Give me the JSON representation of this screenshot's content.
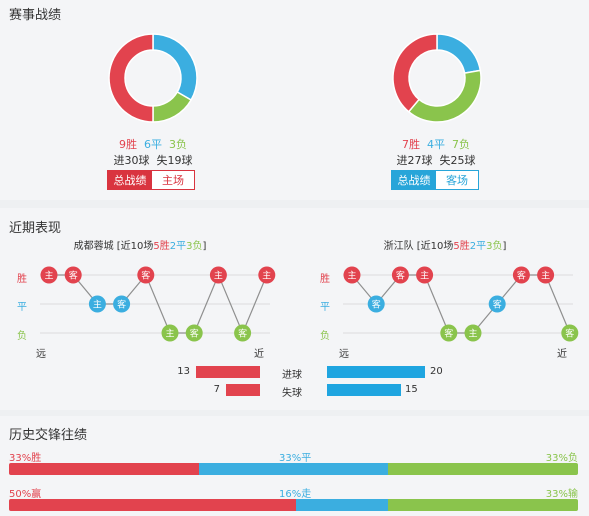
{
  "colors": {
    "win": "#e2434e",
    "draw": "#3baee0",
    "loss": "#8ac44c",
    "home_accent": "#d9343f",
    "away_accent": "#27a5d9"
  },
  "section1": {
    "title": "赛事战绩"
  },
  "left_summary": {
    "wins": 9,
    "draws": 6,
    "losses": 3,
    "win_label": "9胜",
    "draw_label": "6平",
    "loss_label": "3负",
    "goals_text": "进30球  失19球",
    "tab_all": "总战绩",
    "tab_side": "主场"
  },
  "right_summary": {
    "wins": 7,
    "draws": 4,
    "losses": 7,
    "win_label": "7胜",
    "draw_label": "4平",
    "loss_label": "7负",
    "goals_text": "进27球  失25球",
    "tab_all": "总战绩",
    "tab_side": "客场"
  },
  "section2": {
    "title": "近期表现"
  },
  "left_recent": {
    "team": "成都蓉城",
    "prefix": " [近10场",
    "w": "5胜",
    "d": "2平",
    "l": "3负",
    "suffix": "]",
    "rows": {
      "win": "胜",
      "draw": "平",
      "loss": "负"
    },
    "far": "远",
    "near": "近",
    "games": [
      {
        "r": "W",
        "v": "主"
      },
      {
        "r": "W",
        "v": "客"
      },
      {
        "r": "D",
        "v": "主"
      },
      {
        "r": "D",
        "v": "客"
      },
      {
        "r": "W",
        "v": "客"
      },
      {
        "r": "L",
        "v": "主"
      },
      {
        "r": "L",
        "v": "客"
      },
      {
        "r": "W",
        "v": "主"
      },
      {
        "r": "L",
        "v": "客"
      },
      {
        "r": "W",
        "v": "主"
      }
    ]
  },
  "right_recent": {
    "team": "浙江队",
    "prefix": " [近10场",
    "w": "5胜",
    "d": "2平",
    "l": "3负",
    "suffix": "]",
    "rows": {
      "win": "胜",
      "draw": "平",
      "loss": "负"
    },
    "far": "远",
    "near": "近",
    "games": [
      {
        "r": "W",
        "v": "主"
      },
      {
        "r": "D",
        "v": "客"
      },
      {
        "r": "W",
        "v": "客"
      },
      {
        "r": "W",
        "v": "主"
      },
      {
        "r": "L",
        "v": "客"
      },
      {
        "r": "L",
        "v": "主"
      },
      {
        "r": "D",
        "v": "客"
      },
      {
        "r": "W",
        "v": "客"
      },
      {
        "r": "W",
        "v": "主"
      },
      {
        "r": "L",
        "v": "客"
      }
    ]
  },
  "goals_compare": {
    "scored_label": "进球",
    "conceded_label": "失球",
    "left_scored": 13,
    "left_conceded": 7,
    "right_scored": 20,
    "right_conceded": 15
  },
  "section3": {
    "title": "历史交锋往绩"
  },
  "history": [
    {
      "left": "33%胜",
      "mid": "33%平",
      "right": "33%负",
      "a": 33,
      "b": 33,
      "c": 33
    },
    {
      "left": "50%赢",
      "mid": "16%走",
      "right": "33%输",
      "a": 50,
      "b": 16,
      "c": 33
    }
  ]
}
